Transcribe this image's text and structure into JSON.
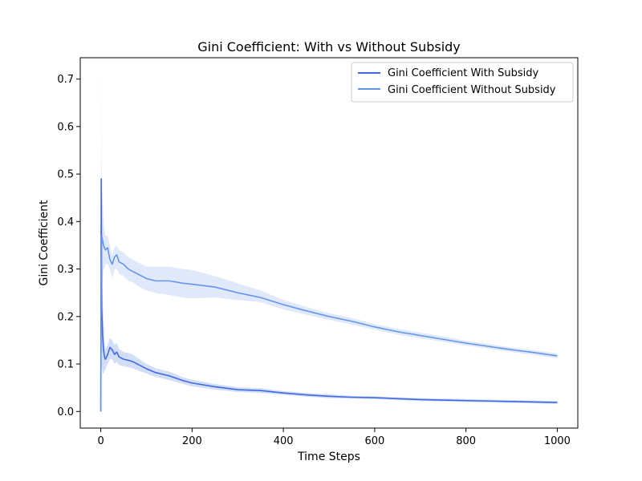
{
  "chart_data": {
    "type": "line",
    "title": "Gini Coefficient: With vs Without Subsidy",
    "xlabel": "Time Steps",
    "ylabel": "Gini Coefficient",
    "xlim": [
      -45,
      1045
    ],
    "ylim": [
      -0.035,
      0.745
    ],
    "xticks": [
      0,
      200,
      400,
      600,
      800,
      1000
    ],
    "xtick_labels": [
      "0",
      "200",
      "400",
      "600",
      "800",
      "1000"
    ],
    "yticks": [
      0.0,
      0.1,
      0.2,
      0.3,
      0.4,
      0.5,
      0.6,
      0.7
    ],
    "ytick_labels": [
      "0.0",
      "0.1",
      "0.2",
      "0.3",
      "0.4",
      "0.5",
      "0.6",
      "0.7"
    ],
    "grid": false,
    "legend_position": "top-right",
    "series": [
      {
        "name": "Gini Coefficient With Subsidy",
        "color": "#4169E1",
        "band_color": "#c3d1f3",
        "x": [
          0,
          1,
          2,
          4,
          6,
          8,
          10,
          15,
          20,
          25,
          30,
          35,
          40,
          50,
          60,
          70,
          80,
          100,
          120,
          150,
          180,
          200,
          250,
          300,
          350,
          400,
          450,
          500,
          550,
          600,
          650,
          700,
          750,
          800,
          850,
          900,
          950,
          1000
        ],
        "y": [
          0.0,
          0.49,
          0.22,
          0.16,
          0.13,
          0.115,
          0.11,
          0.12,
          0.135,
          0.13,
          0.12,
          0.125,
          0.115,
          0.11,
          0.108,
          0.105,
          0.1,
          0.09,
          0.082,
          0.075,
          0.065,
          0.06,
          0.052,
          0.046,
          0.044,
          0.039,
          0.035,
          0.032,
          0.03,
          0.029,
          0.027,
          0.025,
          0.024,
          0.023,
          0.022,
          0.021,
          0.02,
          0.019
        ],
        "lower": [
          0.0,
          0.3,
          0.1,
          0.08,
          0.08,
          0.085,
          0.09,
          0.1,
          0.11,
          0.11,
          0.1,
          0.105,
          0.098,
          0.095,
          0.093,
          0.091,
          0.087,
          0.08,
          0.073,
          0.066,
          0.058,
          0.053,
          0.046,
          0.041,
          0.039,
          0.035,
          0.031,
          0.028,
          0.027,
          0.026,
          0.024,
          0.022,
          0.021,
          0.02,
          0.019,
          0.018,
          0.017,
          0.016
        ],
        "upper": [
          0.0,
          0.5,
          0.32,
          0.24,
          0.19,
          0.15,
          0.13,
          0.14,
          0.155,
          0.15,
          0.14,
          0.145,
          0.132,
          0.125,
          0.123,
          0.12,
          0.113,
          0.1,
          0.091,
          0.084,
          0.072,
          0.067,
          0.058,
          0.051,
          0.049,
          0.043,
          0.039,
          0.036,
          0.033,
          0.032,
          0.03,
          0.028,
          0.027,
          0.026,
          0.025,
          0.024,
          0.023,
          0.022
        ]
      },
      {
        "name": "Gini Coefficient Without Subsidy",
        "color": "#6495ED",
        "band_color": "#d6e2f7",
        "x": [
          0,
          1,
          2,
          4,
          6,
          8,
          10,
          15,
          20,
          25,
          30,
          35,
          40,
          50,
          60,
          70,
          80,
          100,
          120,
          150,
          180,
          200,
          250,
          300,
          350,
          400,
          450,
          500,
          550,
          600,
          650,
          700,
          750,
          800,
          850,
          900,
          950,
          1000
        ],
        "y": [
          0.0,
          0.28,
          0.37,
          0.36,
          0.35,
          0.345,
          0.34,
          0.345,
          0.32,
          0.31,
          0.325,
          0.33,
          0.315,
          0.31,
          0.3,
          0.295,
          0.29,
          0.28,
          0.275,
          0.275,
          0.27,
          0.268,
          0.262,
          0.25,
          0.24,
          0.225,
          0.212,
          0.2,
          0.19,
          0.178,
          0.168,
          0.16,
          0.152,
          0.144,
          0.137,
          0.13,
          0.124,
          0.117
        ],
        "lower": [
          0.0,
          0.1,
          0.22,
          0.28,
          0.3,
          0.3,
          0.31,
          0.31,
          0.3,
          0.28,
          0.3,
          0.3,
          0.29,
          0.285,
          0.275,
          0.272,
          0.265,
          0.255,
          0.25,
          0.245,
          0.24,
          0.238,
          0.24,
          0.235,
          0.23,
          0.215,
          0.204,
          0.193,
          0.183,
          0.172,
          0.162,
          0.154,
          0.147,
          0.139,
          0.132,
          0.125,
          0.119,
          0.112
        ],
        "upper": [
          0.0,
          0.71,
          0.48,
          0.44,
          0.4,
          0.385,
          0.37,
          0.37,
          0.35,
          0.33,
          0.345,
          0.35,
          0.34,
          0.335,
          0.325,
          0.32,
          0.315,
          0.305,
          0.305,
          0.305,
          0.3,
          0.298,
          0.285,
          0.27,
          0.255,
          0.235,
          0.22,
          0.207,
          0.197,
          0.184,
          0.174,
          0.166,
          0.158,
          0.149,
          0.142,
          0.135,
          0.129,
          0.122
        ]
      }
    ]
  }
}
